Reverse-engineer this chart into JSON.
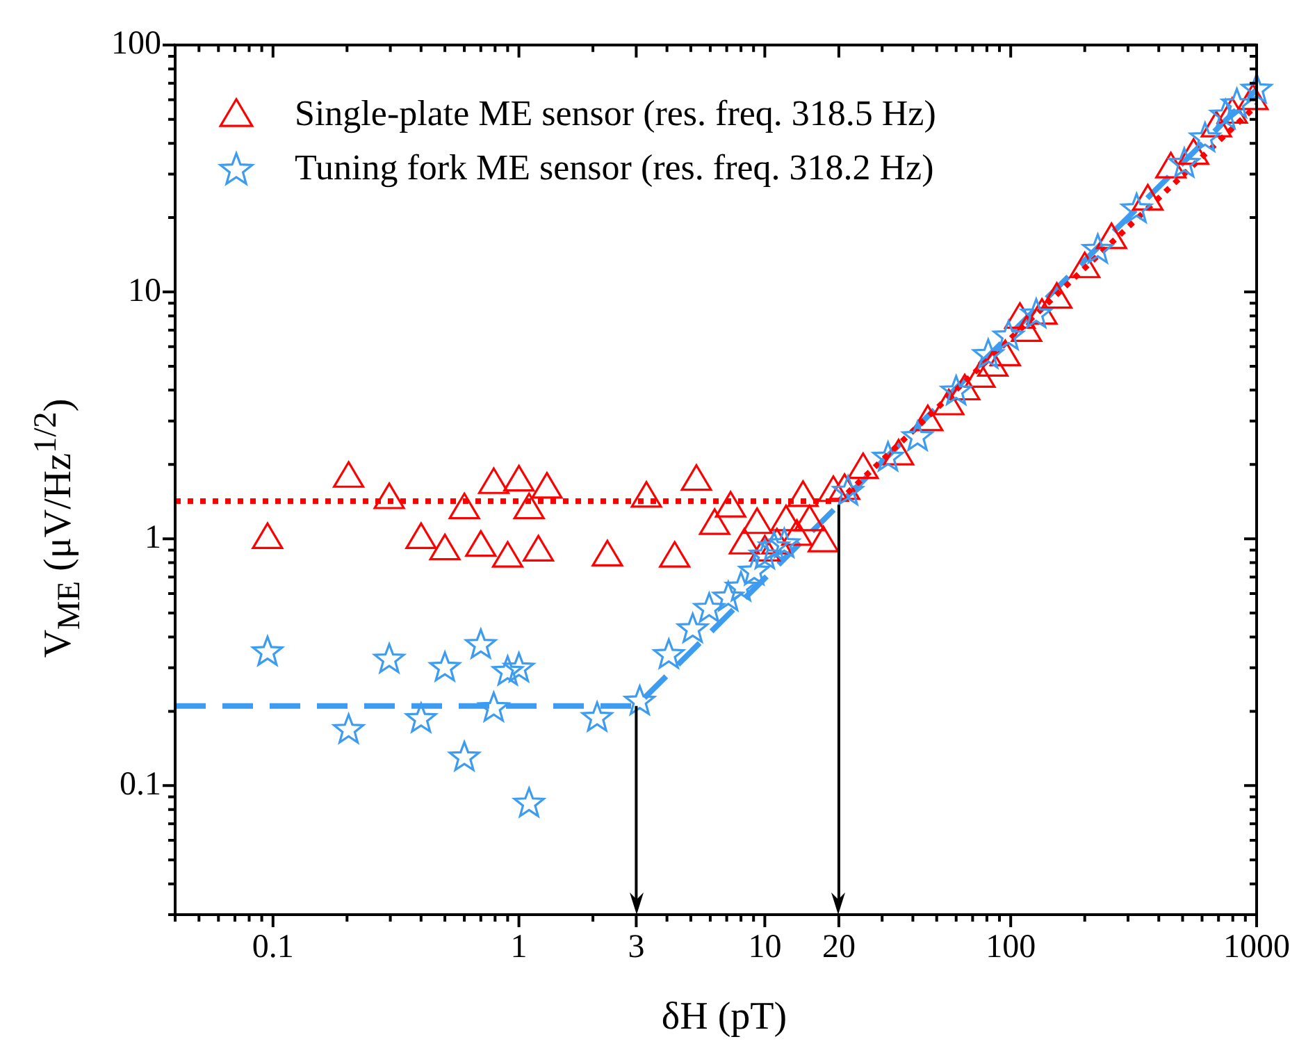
{
  "chart_data": {
    "type": "scatter",
    "xlabel": "δH (pT)",
    "ylabel": "V$_{ME}$ (μV/Hz$^{1/2}$)",
    "log": "xy",
    "grid": false,
    "legend": "top left",
    "xlim": [
      0.04,
      1000
    ],
    "ylim": [
      0.03,
      100
    ],
    "xticks": [
      {
        "value": 0.04,
        "label": null
      },
      {
        "value": 0.05,
        "label": null
      },
      {
        "value": 0.06,
        "label": null
      },
      {
        "value": 0.07,
        "label": null
      },
      {
        "value": 0.08,
        "label": null
      },
      {
        "value": 0.09,
        "label": null
      },
      0.1,
      {
        "value": 0.2,
        "label": null
      },
      {
        "value": 0.3,
        "label": null
      },
      {
        "value": 0.4,
        "label": null
      },
      {
        "value": 0.5,
        "label": null
      },
      {
        "value": 0.6,
        "label": null
      },
      {
        "value": 0.7,
        "label": null
      },
      {
        "value": 0.8,
        "label": null
      },
      {
        "value": 0.9,
        "label": null
      },
      1,
      {
        "value": 2,
        "label": null
      },
      3,
      {
        "value": 4,
        "label": null
      },
      {
        "value": 5,
        "label": null
      },
      {
        "value": 6,
        "label": null
      },
      {
        "value": 7,
        "label": null
      },
      {
        "value": 8,
        "label": null
      },
      {
        "value": 9,
        "label": null
      },
      10,
      20,
      {
        "value": 30,
        "label": null
      },
      {
        "value": 40,
        "label": null
      },
      {
        "value": 50,
        "label": null
      },
      {
        "value": 60,
        "label": null
      },
      {
        "value": 70,
        "label": null
      },
      {
        "value": 80,
        "label": null
      },
      {
        "value": 90,
        "label": null
      },
      100,
      {
        "value": 200,
        "label": null
      },
      {
        "value": 300,
        "label": null
      },
      {
        "value": 400,
        "label": null
      },
      {
        "value": 500,
        "label": null
      },
      {
        "value": 600,
        "label": null
      },
      {
        "value": 700,
        "label": null
      },
      {
        "value": 800,
        "label": null
      },
      {
        "value": 900,
        "label": null
      },
      1000
    ],
    "yticks": [
      {
        "value": 0.03,
        "label": null
      },
      {
        "value": 0.04,
        "label": null
      },
      {
        "value": 0.05,
        "label": null
      },
      {
        "value": 0.06,
        "label": null
      },
      {
        "value": 0.07,
        "label": null
      },
      {
        "value": 0.08,
        "label": null
      },
      {
        "value": 0.09,
        "label": null
      },
      0.1,
      {
        "value": 0.2,
        "label": null
      },
      {
        "value": 0.3,
        "label": null
      },
      {
        "value": 0.4,
        "label": null
      },
      {
        "value": 0.5,
        "label": null
      },
      {
        "value": 0.6,
        "label": null
      },
      {
        "value": 0.7,
        "label": null
      },
      {
        "value": 0.8,
        "label": null
      },
      {
        "value": 0.9,
        "label": null
      },
      1,
      {
        "value": 2,
        "label": null
      },
      {
        "value": 3,
        "label": null
      },
      {
        "value": 4,
        "label": null
      },
      {
        "value": 5,
        "label": null
      },
      {
        "value": 6,
        "label": null
      },
      {
        "value": 7,
        "label": null
      },
      {
        "value": 8,
        "label": null
      },
      {
        "value": 9,
        "label": null
      },
      10,
      {
        "value": 20,
        "label": null
      },
      {
        "value": 30,
        "label": null
      },
      {
        "value": 40,
        "label": null
      },
      {
        "value": 50,
        "label": null
      },
      {
        "value": 60,
        "label": null
      },
      {
        "value": 70,
        "label": null
      },
      {
        "value": 80,
        "label": null
      },
      {
        "value": 90,
        "label": null
      },
      100
    ],
    "ref_lines": [
      {
        "axis": "x",
        "value": 3,
        "color": "#000000"
      },
      {
        "axis": "x",
        "value": 20,
        "color": "#000000"
      }
    ],
    "series": [
      {
        "name": "Single-plate ME sensor (res. freq. 318.5 Hz)",
        "type": "scatter",
        "marker": "triangle",
        "color": "#ff0000",
        "x": [
          0.095,
          0.203,
          0.297,
          0.4,
          0.5,
          0.6,
          0.7,
          0.79,
          0.9,
          1.0,
          1.1,
          1.2,
          1.3,
          2.29,
          3.3,
          4.3,
          5.27,
          6.25,
          7.26,
          8.26,
          9.3,
          10.0,
          11.2,
          12.2,
          13.5,
          14.3,
          15.2,
          17.3,
          19.0,
          21.1,
          25.1,
          35,
          46,
          56,
          65,
          75,
          84.6,
          95,
          109,
          116,
          134,
          154,
          200,
          257,
          361,
          448,
          554,
          686,
          796,
          966
        ],
        "values": [
          1.0,
          1.77,
          1.45,
          1.0,
          0.9,
          1.32,
          0.93,
          1.67,
          0.84,
          1.71,
          1.32,
          0.89,
          1.6,
          0.85,
          1.47,
          0.84,
          1.72,
          1.14,
          1.34,
          0.95,
          1.15,
          0.89,
          0.95,
          1.18,
          1.03,
          1.48,
          1.18,
          0.97,
          1.55,
          1.58,
          1.92,
          2.18,
          3.0,
          3.48,
          4.0,
          4.5,
          4.99,
          5.5,
          7.8,
          6.9,
          8.1,
          9.4,
          12.5,
          16.4,
          23.5,
          31.7,
          36,
          46.5,
          52.8,
          60
        ]
      },
      {
        "name": "Tuning fork ME sensor (res. freq. 318.2 Hz)",
        "type": "scatter",
        "marker": "star",
        "color": "#3d9bf0",
        "x": [
          0.095,
          0.203,
          0.297,
          0.4,
          0.5,
          0.6,
          0.7,
          0.79,
          0.9,
          1.0,
          1.1,
          2.08,
          3.1,
          4.07,
          5.09,
          5.94,
          7.1,
          8.0,
          9.06,
          10.0,
          10.9,
          12.0,
          21.8,
          31.7,
          41.8,
          60,
          81,
          98,
          127,
          226,
          325,
          508,
          617,
          747,
          831,
          1000
        ],
        "values": [
          0.347,
          0.168,
          0.324,
          0.186,
          0.3,
          0.13,
          0.371,
          0.206,
          0.289,
          0.298,
          0.0845,
          0.188,
          0.219,
          0.338,
          0.43,
          0.52,
          0.578,
          0.634,
          0.736,
          0.855,
          0.923,
          0.95,
          1.55,
          2.13,
          2.58,
          3.95,
          5.55,
          6.6,
          8.1,
          14.8,
          21.6,
          33,
          41.9,
          51.8,
          57.5,
          66
        ]
      },
      {
        "type": "line",
        "marker": "none",
        "line_style": "dotted",
        "color": "#ff0000",
        "x": [
          0.04,
          20,
          1000
        ],
        "values": [
          1.42,
          1.42,
          57
        ]
      },
      {
        "type": "line",
        "marker": "none",
        "line_style": "dashed",
        "color": "#3d9bf0",
        "x": [
          0.04,
          3,
          1000
        ],
        "values": [
          0.21,
          0.21,
          66
        ]
      }
    ]
  }
}
